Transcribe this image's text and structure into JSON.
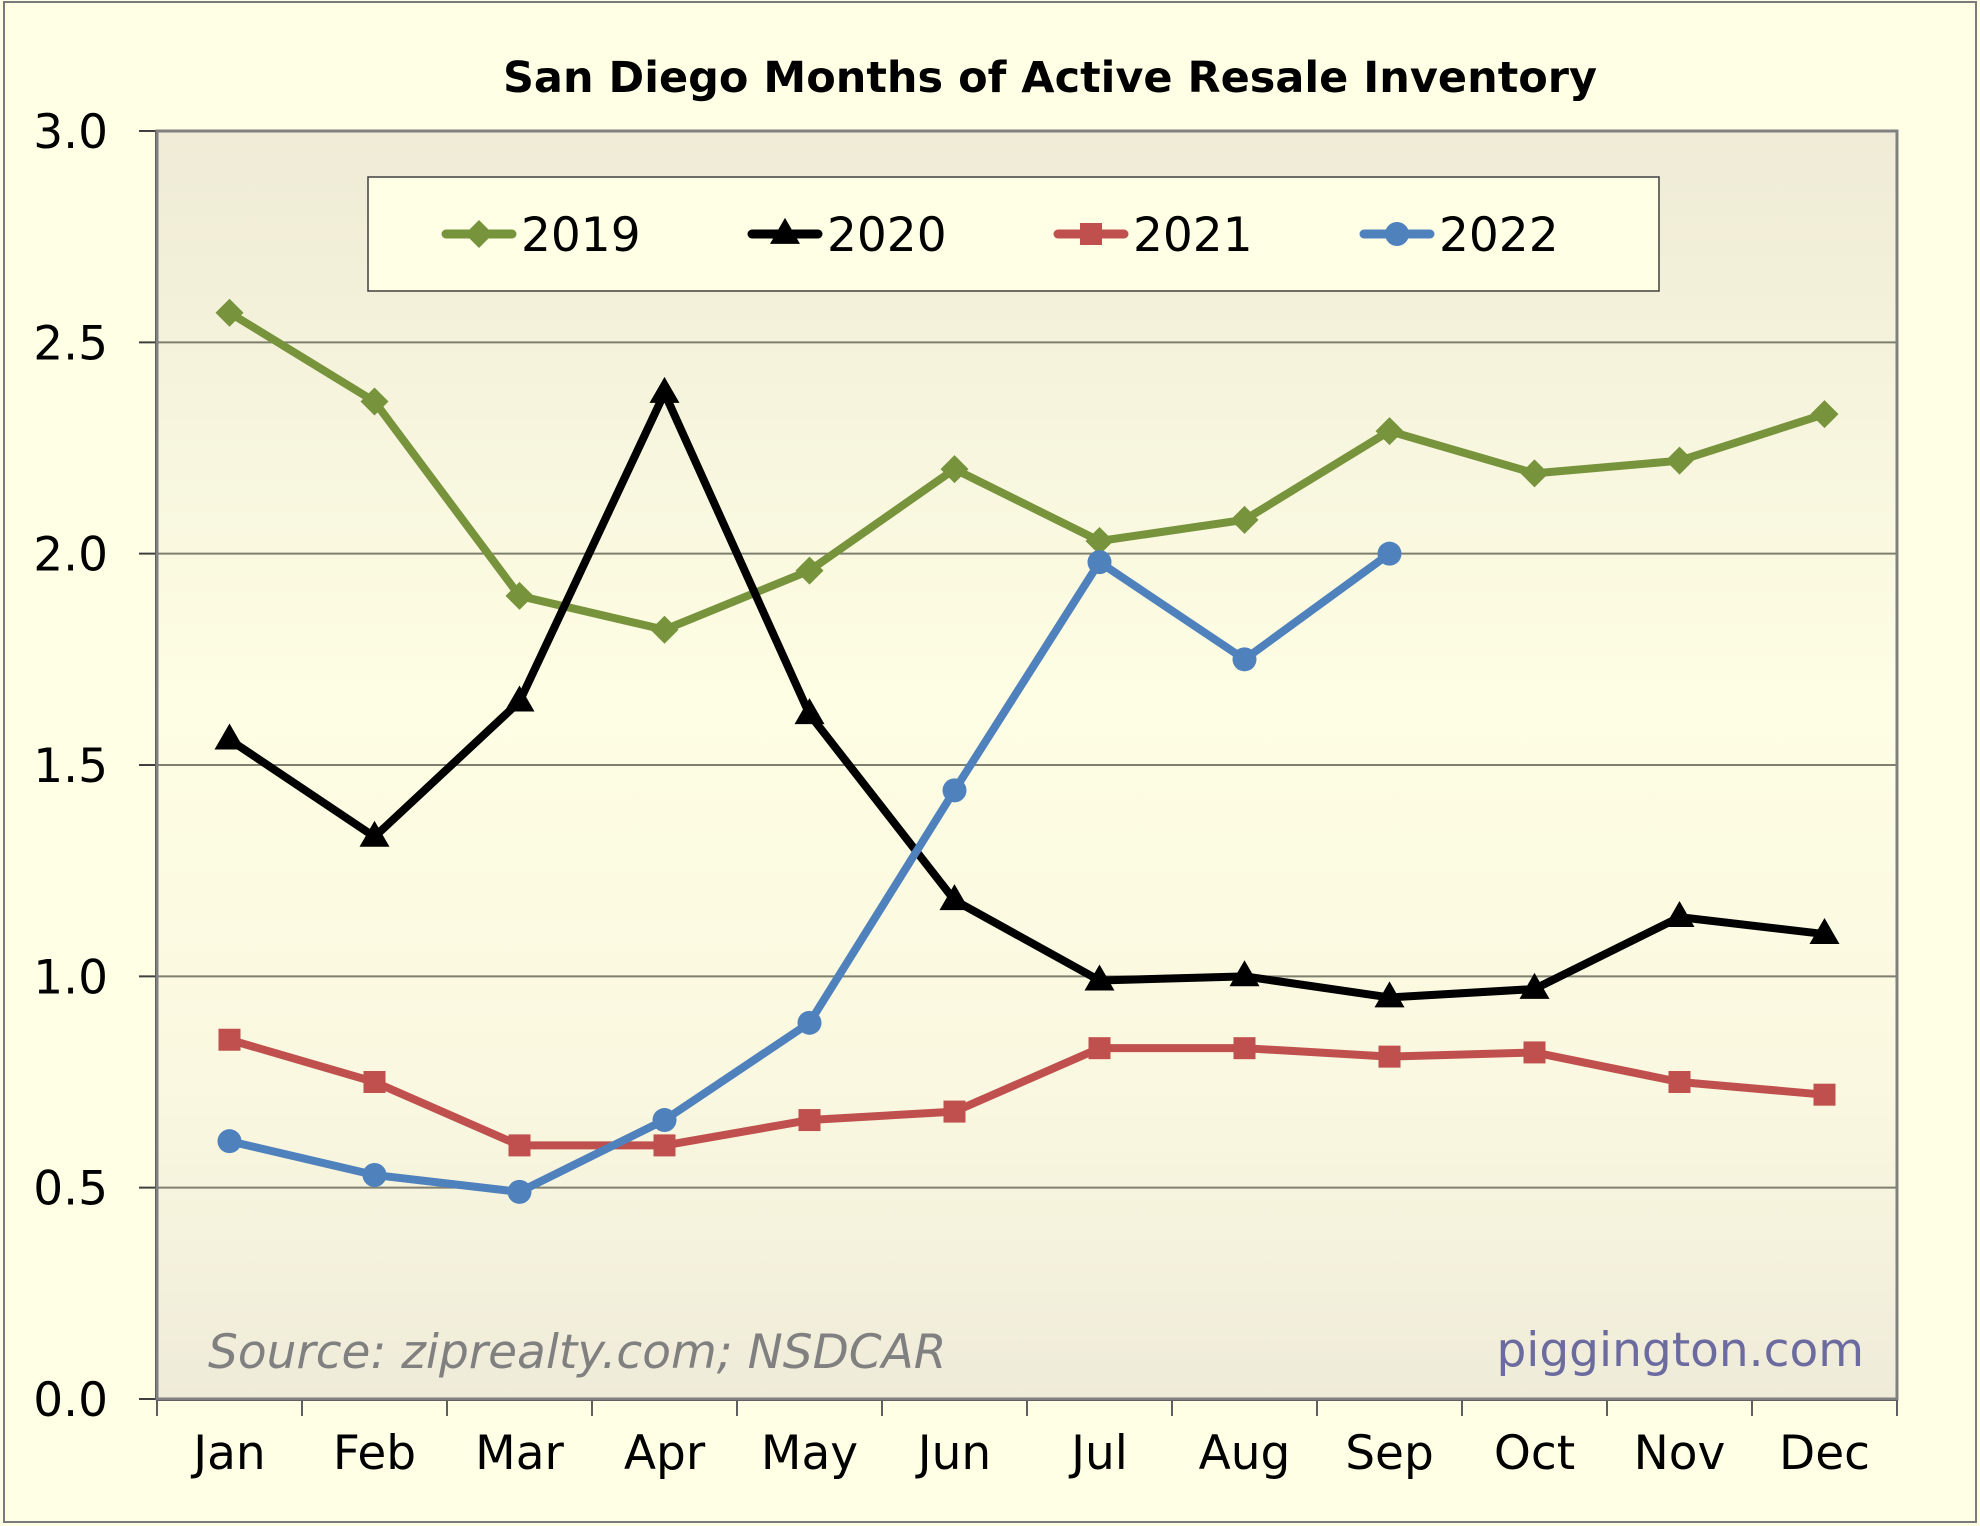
{
  "chart_data": {
    "type": "line",
    "title": "San Diego Months of Active Resale Inventory",
    "xlabel": "",
    "ylabel": "",
    "categories": [
      "Jan",
      "Feb",
      "Mar",
      "Apr",
      "May",
      "Jun",
      "Jul",
      "Aug",
      "Sep",
      "Oct",
      "Nov",
      "Dec"
    ],
    "ylim": [
      0,
      3
    ],
    "yticks": [
      "0.0",
      "0.5",
      "1.0",
      "1.5",
      "2.0",
      "2.5",
      "3.0"
    ],
    "ytick_values": [
      0,
      0.5,
      1.0,
      1.5,
      2.0,
      2.5,
      3.0
    ],
    "grid": true,
    "legend_position": "top-center",
    "series": [
      {
        "name": "2019",
        "color": "#77933c",
        "marker": "diamond",
        "values": [
          2.57,
          2.36,
          1.9,
          1.82,
          1.96,
          2.2,
          2.03,
          2.08,
          2.29,
          2.19,
          2.22,
          2.33
        ]
      },
      {
        "name": "2020",
        "color": "#000000",
        "marker": "triangle",
        "values": [
          1.56,
          1.33,
          1.65,
          2.38,
          1.62,
          1.18,
          0.99,
          1.0,
          0.95,
          0.97,
          1.14,
          1.1
        ]
      },
      {
        "name": "2021",
        "color": "#c0504d",
        "marker": "square",
        "values": [
          0.85,
          0.75,
          0.6,
          0.6,
          0.66,
          0.68,
          0.83,
          0.83,
          0.81,
          0.82,
          0.75,
          0.72
        ]
      },
      {
        "name": "2022",
        "color": "#4f81bd",
        "marker": "circle",
        "values": [
          0.61,
          0.53,
          0.49,
          0.66,
          0.89,
          1.44,
          1.98,
          1.75,
          2.0,
          null,
          null,
          null
        ]
      }
    ],
    "annotations": {
      "source": "Source: ziprealty.com; NSDCAR",
      "credit": "piggington.com"
    }
  },
  "colors": {
    "page_background": "#ffffe6",
    "plot_border": "#808080",
    "gridline": "#7f7f6f",
    "source_text": "#808080",
    "credit_text": "#6b6b9f"
  }
}
